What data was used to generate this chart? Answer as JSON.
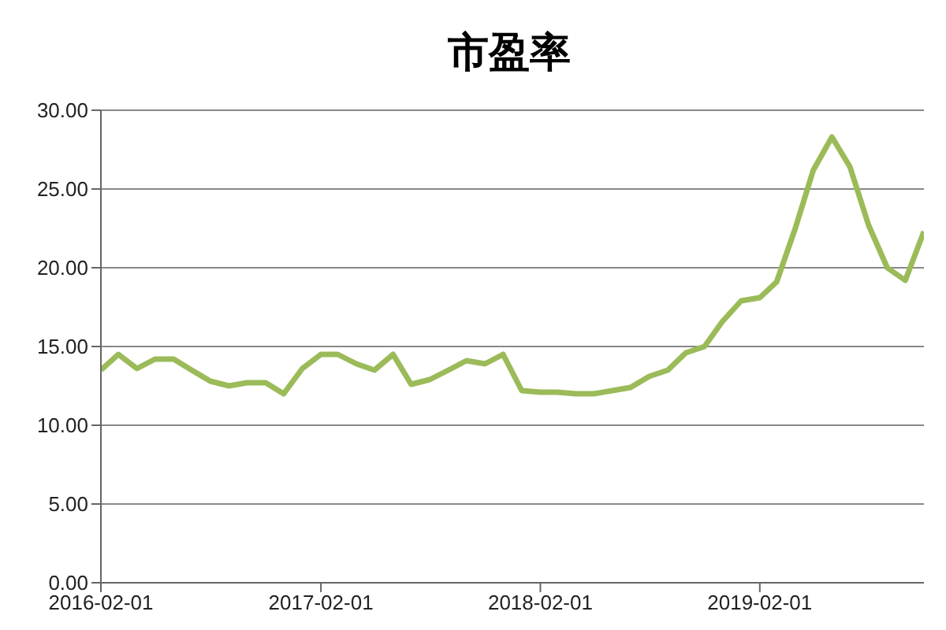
{
  "chart_data": {
    "type": "line",
    "title": "市盈率",
    "x": [
      "2016-02-01",
      "2016-03-01",
      "2016-04-01",
      "2016-05-01",
      "2016-06-01",
      "2016-07-01",
      "2016-08-01",
      "2016-09-01",
      "2016-10-01",
      "2016-11-01",
      "2016-12-01",
      "2017-01-01",
      "2017-02-01",
      "2017-03-01",
      "2017-04-01",
      "2017-05-01",
      "2017-06-01",
      "2017-07-01",
      "2017-08-01",
      "2017-09-01",
      "2017-10-01",
      "2017-11-01",
      "2017-12-01",
      "2018-01-01",
      "2018-02-01",
      "2018-03-01",
      "2018-04-01",
      "2018-05-01",
      "2018-06-01",
      "2018-07-01",
      "2018-08-01",
      "2018-09-01",
      "2018-10-01",
      "2018-11-01",
      "2018-12-01",
      "2019-01-01",
      "2019-02-01",
      "2019-03-01",
      "2019-04-01",
      "2019-05-01",
      "2019-06-01",
      "2019-07-01",
      "2019-08-01",
      "2019-09-01",
      "2019-10-01",
      "2019-11-01"
    ],
    "series": [
      {
        "color": "#9bbb59",
        "values": [
          13.5,
          14.5,
          13.6,
          14.2,
          14.2,
          13.5,
          12.8,
          12.5,
          12.7,
          12.7,
          12.0,
          13.6,
          14.5,
          14.5,
          13.9,
          13.5,
          14.5,
          12.6,
          12.9,
          13.5,
          14.1,
          13.9,
          14.5,
          12.2,
          12.1,
          12.1,
          12.0,
          12.0,
          12.2,
          12.4,
          13.1,
          13.5,
          14.6,
          15.0,
          16.6,
          17.9,
          18.1,
          19.1,
          22.5,
          26.2,
          28.3,
          26.4,
          22.7,
          20.0,
          19.2,
          22.3
        ]
      }
    ],
    "xlim": [
      "2016-02-01",
      "2019-11-01"
    ],
    "xticks": [
      "2016-02-01",
      "2017-02-01",
      "2018-02-01",
      "2019-02-01"
    ],
    "ylim": [
      0,
      30
    ],
    "yticks": [
      {
        "value": 0,
        "label": "0.00"
      },
      {
        "value": 5,
        "label": "5.00"
      },
      {
        "value": 10,
        "label": "10.00"
      },
      {
        "value": 15,
        "label": "15.00"
      },
      {
        "value": 20,
        "label": "20.00"
      },
      {
        "value": 25,
        "label": "25.00"
      },
      {
        "value": 30,
        "label": "30.00"
      }
    ],
    "grid": "y",
    "legend": false,
    "marker": "none",
    "line_style": "solid"
  }
}
